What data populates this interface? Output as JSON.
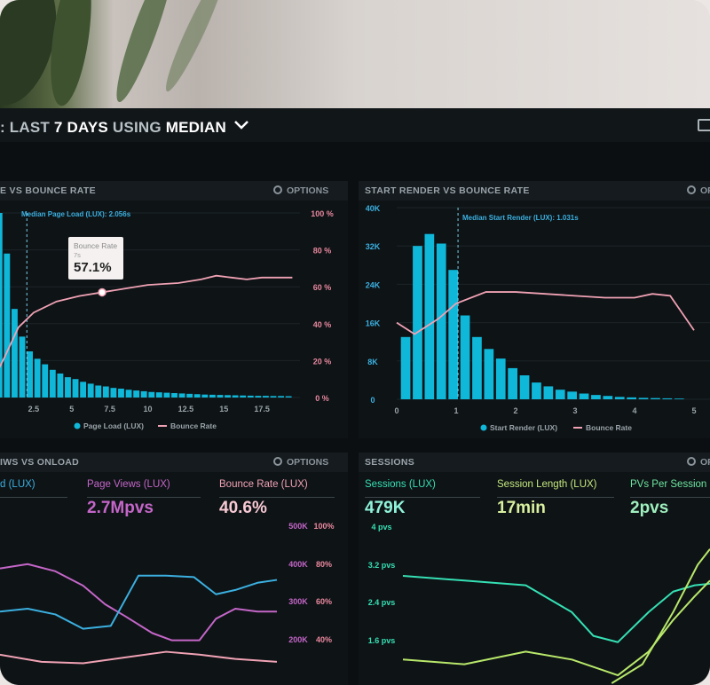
{
  "header": {
    "prefix": ": ",
    "w1": "LAST",
    "w2": "7 DAYS",
    "w3": "USING",
    "w4": "MEDIAN"
  },
  "colors": {
    "bar_cyan": "#0fb7d8",
    "line_pink": "#f0a2b4",
    "purple": "#c466c8",
    "blue": "#3bb0e0",
    "teal": "#35e0b4",
    "lime": "#b8e86a",
    "green": "#6ee6a0"
  },
  "panels": {
    "p1": {
      "title": "E VS BOUNCE RATE",
      "options": "OPTIONS"
    },
    "p2": {
      "title": "START RENDER VS BOUNCE RATE",
      "options": "OP"
    },
    "p3": {
      "title": "IWS VS ONLOAD",
      "options": "OPTIONS"
    },
    "p4": {
      "title": "SESSIONS",
      "options": "OP"
    }
  },
  "tooltip": {
    "label": "Bounce Rate",
    "sub": "7s",
    "value": "57.1%"
  },
  "metrics": {
    "p3": [
      {
        "label": "d (LUX)",
        "value": ""
      },
      {
        "label": "Page Views (LUX)",
        "value": "2.7Mpvs"
      },
      {
        "label": "Bounce Rate (LUX)",
        "value": "40.6%"
      }
    ],
    "p4": [
      {
        "label": "Sessions (LUX)",
        "value": "479K"
      },
      {
        "label": "Session Length (LUX)",
        "value": "17min"
      },
      {
        "label": "PVs Per Session (L",
        "value": "2pvs"
      }
    ]
  },
  "chart_data": [
    {
      "type": "bar",
      "x_ticks": [
        "2.5",
        "5",
        "7.5",
        "10",
        "12.5",
        "15",
        "17.5"
      ],
      "y2_ticks": [
        "0 %",
        "20 %",
        "40 %",
        "60 %",
        "80 %",
        "100 %"
      ],
      "marker_label": "Median Page Load (LUX): 2.056s",
      "legend": [
        "Page Load (LUX)",
        "Bounce Rate"
      ],
      "x_start": 0.25,
      "x_step": 0.5,
      "x_range": [
        0,
        20
      ],
      "bars": [
        100,
        78,
        48,
        33,
        25,
        21,
        18,
        15,
        13,
        11,
        10,
        8.5,
        7.5,
        6.5,
        6,
        5.2,
        4.8,
        4.2,
        3.8,
        3.4,
        3,
        2.8,
        2.6,
        2.4,
        2.2,
        2,
        1.8,
        1.6,
        1.5,
        1.4,
        1.3,
        1.2,
        1.1,
        1,
        0.9,
        0.9,
        0.8,
        0.8,
        0.7
      ],
      "bounce_rate": [
        [
          0,
          12
        ],
        [
          0.6,
          22
        ],
        [
          1.5,
          38
        ],
        [
          2.5,
          46
        ],
        [
          4,
          52
        ],
        [
          5.5,
          55
        ],
        [
          7,
          57
        ],
        [
          8.5,
          59
        ],
        [
          10,
          61
        ],
        [
          12,
          62
        ],
        [
          13.5,
          64
        ],
        [
          14.5,
          66
        ],
        [
          15.5,
          65
        ],
        [
          16.5,
          64
        ],
        [
          17.5,
          65
        ],
        [
          19.5,
          65
        ]
      ]
    },
    {
      "type": "bar",
      "x_ticks": [
        "0",
        "1",
        "2",
        "3",
        "4",
        "5"
      ],
      "y_ticks": [
        "0",
        "8K",
        "16K",
        "24K",
        "32K",
        "40K"
      ],
      "marker_label": "Median Start Render (LUX): 1.031s",
      "legend": [
        "Start Render (LUX)",
        "Bounce Rate"
      ],
      "x_start": 0.15,
      "x_step": 0.2,
      "x_range": [
        0,
        5
      ],
      "y_range": [
        0,
        40000
      ],
      "bars": [
        13000,
        32000,
        34500,
        32500,
        27000,
        17500,
        13000,
        10500,
        8500,
        6500,
        5000,
        3500,
        2700,
        2000,
        1600,
        1200,
        900,
        700,
        500,
        400,
        300,
        250,
        200,
        150
      ],
      "bounce_rate": [
        [
          0,
          40
        ],
        [
          0.3,
          34
        ],
        [
          0.7,
          42
        ],
        [
          1,
          50
        ],
        [
          1.5,
          56
        ],
        [
          2,
          56
        ],
        [
          2.5,
          55
        ],
        [
          3,
          54
        ],
        [
          3.5,
          53
        ],
        [
          4,
          53
        ],
        [
          4.3,
          55
        ],
        [
          4.6,
          54
        ],
        [
          5,
          36
        ]
      ]
    },
    {
      "type": "line",
      "y_ticks": [
        "200K",
        "300K",
        "400K",
        "500K"
      ],
      "y2_ticks": [
        "40%",
        "60%",
        "80%",
        "100%"
      ],
      "series": [
        {
          "points": [
            [
              0,
              0.7
            ],
            [
              0.1,
              0.73
            ],
            [
              0.2,
              0.68
            ],
            [
              0.3,
              0.58
            ],
            [
              0.38,
              0.45
            ],
            [
              0.45,
              0.37
            ],
            [
              0.55,
              0.25
            ],
            [
              0.62,
              0.2
            ],
            [
              0.72,
              0.2
            ],
            [
              0.78,
              0.35
            ],
            [
              0.85,
              0.42
            ],
            [
              0.93,
              0.4
            ],
            [
              1,
              0.4
            ]
          ]
        },
        {
          "points": [
            [
              0,
              0.4
            ],
            [
              0.1,
              0.42
            ],
            [
              0.2,
              0.38
            ],
            [
              0.3,
              0.28
            ],
            [
              0.4,
              0.3
            ],
            [
              0.5,
              0.65
            ],
            [
              0.6,
              0.65
            ],
            [
              0.7,
              0.64
            ],
            [
              0.78,
              0.52
            ],
            [
              0.85,
              0.55
            ],
            [
              0.93,
              0.6
            ],
            [
              1,
              0.62
            ]
          ]
        },
        {
          "points": [
            [
              0,
              0.1
            ],
            [
              0.15,
              0.05
            ],
            [
              0.3,
              0.04
            ],
            [
              0.45,
              0.08
            ],
            [
              0.6,
              0.12
            ],
            [
              0.72,
              0.1
            ],
            [
              0.85,
              0.07
            ],
            [
              1,
              0.05
            ]
          ]
        }
      ]
    },
    {
      "type": "line",
      "y_ticks": [
        "1.6 pvs",
        "2.4 pvs",
        "3.2 pvs",
        "4 pvs"
      ],
      "series": [
        {
          "points": [
            [
              0,
              0.68
            ],
            [
              0.2,
              0.65
            ],
            [
              0.4,
              0.62
            ],
            [
              0.55,
              0.45
            ],
            [
              0.62,
              0.3
            ],
            [
              0.7,
              0.26
            ],
            [
              0.8,
              0.45
            ],
            [
              0.88,
              0.58
            ],
            [
              0.95,
              0.62
            ],
            [
              1,
              0.63
            ]
          ]
        },
        {
          "points": [
            [
              0,
              0.15
            ],
            [
              0.2,
              0.12
            ],
            [
              0.4,
              0.2
            ],
            [
              0.55,
              0.15
            ],
            [
              0.7,
              0.05
            ],
            [
              0.8,
              0.2
            ],
            [
              0.88,
              0.4
            ],
            [
              0.95,
              0.55
            ],
            [
              1,
              0.65
            ]
          ]
        },
        {
          "points": [
            [
              0.68,
              0
            ],
            [
              0.78,
              0.12
            ],
            [
              0.88,
              0.45
            ],
            [
              0.96,
              0.75
            ],
            [
              1,
              0.85
            ]
          ]
        }
      ]
    }
  ]
}
